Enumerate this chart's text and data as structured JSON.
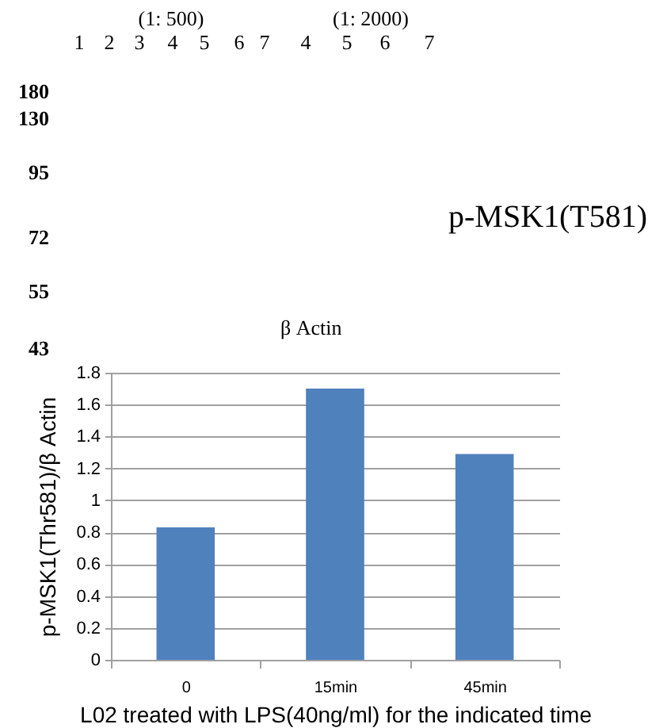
{
  "chart_data": {
    "type": "bar",
    "categories": [
      "0",
      "15min",
      "45min"
    ],
    "values": [
      0.83,
      1.7,
      1.29
    ],
    "color": "#4f81bd",
    "ylim": [
      0,
      1.8
    ],
    "yticks": [
      0,
      0.2,
      0.4,
      0.6,
      0.8,
      1,
      1.2,
      1.4,
      1.6,
      1.8
    ],
    "grid": "y",
    "ylabel": "p-MSK1(Thr581)/β Actin",
    "xlabel": "L02 treated with LPS(40ng/ml) for the indicated time",
    "annotations": [
      "(1: 500)",
      "(1: 2000)",
      "1",
      "2",
      "3",
      "4",
      "5",
      "6",
      "7",
      "4",
      "5",
      "6",
      "7",
      "180",
      "130",
      "95",
      "72",
      "55",
      "43",
      "p-MSK1(T581)",
      "β Actin"
    ]
  }
}
